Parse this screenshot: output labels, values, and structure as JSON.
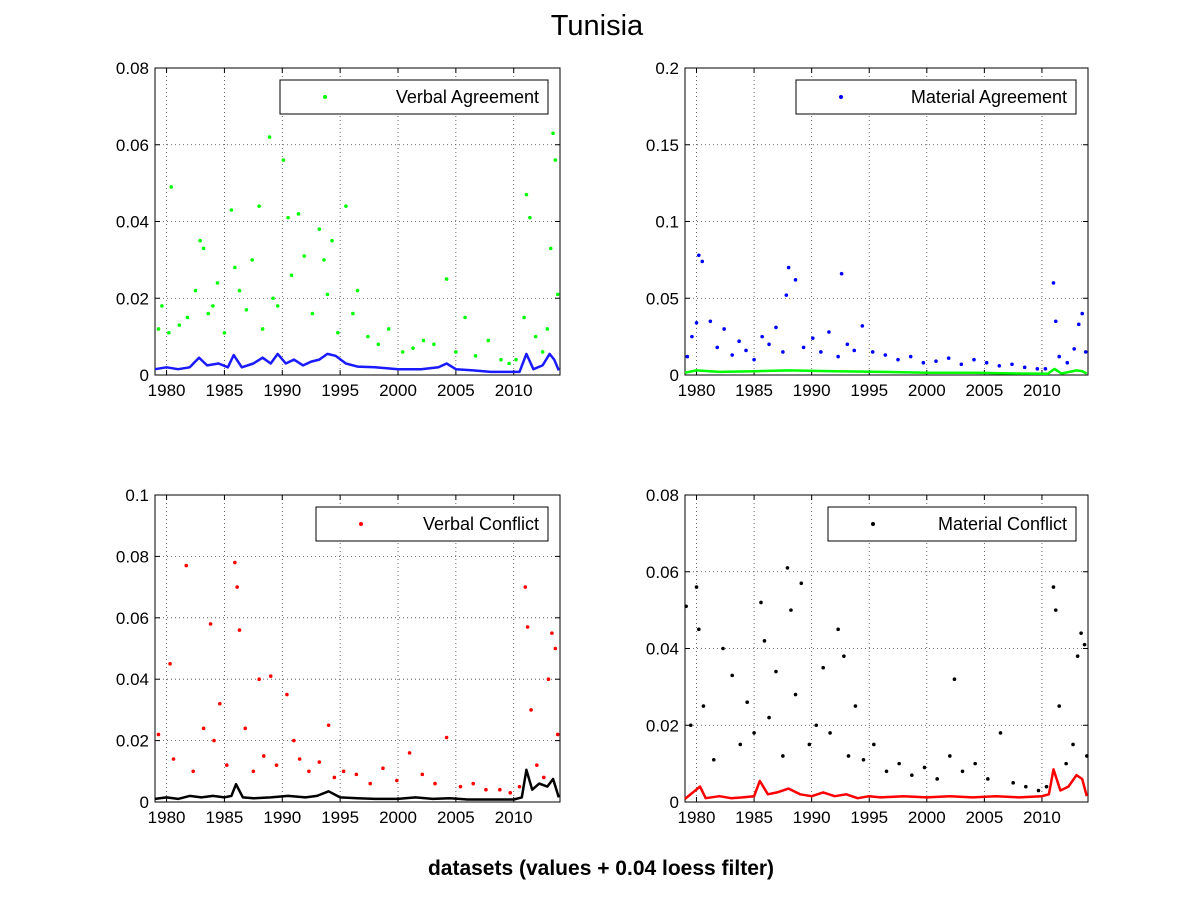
{
  "figure_title": "Tunisia",
  "figure_xlabel": "datasets (values + 0.04 loess filter)",
  "chart_data": [
    {
      "type": "scatter",
      "xlim": [
        1979,
        2014
      ],
      "ylim": [
        0,
        0.08
      ],
      "x_ticks": [
        1980,
        1985,
        1990,
        1995,
        2000,
        2005,
        2010
      ],
      "y_ticks": [
        "0",
        "0.02",
        "0.04",
        "0.06",
        "0.08"
      ],
      "grid": true,
      "legend_position": "top-right",
      "series": [
        {
          "name": "Verbal Agreement",
          "color": "#00ff00",
          "kind": "points",
          "x": [
            1979.3,
            1979.6,
            1980.2,
            1980.4,
            1981.1,
            1981.8,
            1982.5,
            1982.9,
            1983.2,
            1983.6,
            1984.0,
            1984.4,
            1985.0,
            1985.6,
            1985.9,
            1986.3,
            1986.9,
            1987.4,
            1988.0,
            1988.3,
            1988.9,
            1989.2,
            1989.6,
            1990.1,
            1990.5,
            1990.8,
            1991.4,
            1991.9,
            1992.6,
            1993.2,
            1993.6,
            1993.9,
            1994.3,
            1994.8,
            1995.5,
            1996.1,
            1996.5,
            1997.4,
            1998.3,
            1999.2,
            2000.4,
            2001.3,
            2002.2,
            2003.1,
            2004.2,
            2005.0,
            2005.8,
            2006.7,
            2007.8,
            2008.9,
            2009.6,
            2010.2,
            2010.9,
            2011.1,
            2011.4,
            2011.9,
            2012.5,
            2012.9,
            2013.2,
            2013.4,
            2013.6,
            2013.8
          ],
          "y": [
            0.012,
            0.018,
            0.011,
            0.049,
            0.013,
            0.015,
            0.022,
            0.035,
            0.033,
            0.016,
            0.018,
            0.024,
            0.011,
            0.043,
            0.028,
            0.022,
            0.017,
            0.03,
            0.044,
            0.012,
            0.062,
            0.02,
            0.018,
            0.056,
            0.041,
            0.026,
            0.042,
            0.031,
            0.016,
            0.038,
            0.03,
            0.021,
            0.035,
            0.011,
            0.044,
            0.016,
            0.022,
            0.01,
            0.008,
            0.012,
            0.006,
            0.007,
            0.009,
            0.008,
            0.025,
            0.006,
            0.015,
            0.005,
            0.009,
            0.004,
            0.003,
            0.004,
            0.015,
            0.047,
            0.041,
            0.01,
            0.006,
            0.012,
            0.033,
            0.063,
            0.056,
            0.021
          ]
        },
        {
          "name": "",
          "color": "#1a1aff",
          "kind": "line",
          "x": [
            1979,
            1980,
            1981,
            1982,
            1982.8,
            1983.5,
            1984.5,
            1985.3,
            1985.8,
            1986.5,
            1987.5,
            1988.3,
            1989.0,
            1989.6,
            1990.3,
            1991.0,
            1991.8,
            1992.5,
            1993.2,
            1993.9,
            1994.6,
            1995.5,
            1996.5,
            1998,
            2000,
            2002,
            2003.5,
            2004.2,
            2005,
            2006.5,
            2008,
            2009.5,
            2010.5,
            2011.1,
            2011.7,
            2012.5,
            2013.1,
            2013.5,
            2013.9
          ],
          "y": [
            0.0015,
            0.002,
            0.0015,
            0.002,
            0.0045,
            0.0025,
            0.003,
            0.002,
            0.0052,
            0.002,
            0.003,
            0.0045,
            0.003,
            0.0055,
            0.003,
            0.004,
            0.0025,
            0.0035,
            0.004,
            0.0055,
            0.005,
            0.003,
            0.0022,
            0.002,
            0.0015,
            0.0015,
            0.002,
            0.003,
            0.0015,
            0.0012,
            0.0008,
            0.0008,
            0.0008,
            0.0055,
            0.0015,
            0.0025,
            0.0055,
            0.004,
            0.0012
          ]
        }
      ]
    },
    {
      "type": "scatter",
      "xlim": [
        1979,
        2014
      ],
      "ylim": [
        0,
        0.2
      ],
      "x_ticks": [
        1980,
        1985,
        1990,
        1995,
        2000,
        2005,
        2010
      ],
      "y_ticks": [
        "0",
        "0.05",
        "0.1",
        "0.15",
        "0.2"
      ],
      "grid": true,
      "legend_position": "top-right",
      "series": [
        {
          "name": "Material Agreement",
          "color": "#0000ff",
          "kind": "points",
          "x": [
            1979.2,
            1979.6,
            1980.0,
            1980.2,
            1980.5,
            1981.2,
            1981.8,
            1982.4,
            1983.1,
            1983.7,
            1984.3,
            1985.0,
            1985.7,
            1986.3,
            1986.9,
            1987.5,
            1987.8,
            1988.0,
            1988.6,
            1989.3,
            1990.1,
            1990.8,
            1991.5,
            1992.3,
            1992.6,
            1993.1,
            1993.7,
            1994.4,
            1995.3,
            1996.4,
            1997.5,
            1998.6,
            1999.7,
            2000.8,
            2001.9,
            2003.0,
            2004.1,
            2005.2,
            2006.3,
            2007.4,
            2008.5,
            2009.6,
            2010.3,
            2011.0,
            2011.2,
            2011.5,
            2012.2,
            2012.8,
            2013.2,
            2013.5,
            2013.8
          ],
          "y": [
            0.012,
            0.025,
            0.034,
            0.078,
            0.074,
            0.035,
            0.018,
            0.03,
            0.013,
            0.022,
            0.016,
            0.01,
            0.025,
            0.02,
            0.031,
            0.015,
            0.052,
            0.07,
            0.062,
            0.018,
            0.024,
            0.015,
            0.028,
            0.012,
            0.066,
            0.02,
            0.016,
            0.032,
            0.015,
            0.013,
            0.01,
            0.012,
            0.008,
            0.009,
            0.011,
            0.007,
            0.01,
            0.008,
            0.006,
            0.007,
            0.005,
            0.004,
            0.004,
            0.06,
            0.035,
            0.012,
            0.008,
            0.017,
            0.033,
            0.04,
            0.015
          ]
        },
        {
          "name": "",
          "color": "#00ff00",
          "kind": "line",
          "x": [
            1979,
            1980,
            1982,
            1985,
            1988,
            1992,
            1996,
            2000,
            2004,
            2008,
            2010.5,
            2011.1,
            2011.7,
            2013,
            2013.5,
            2013.9
          ],
          "y": [
            0.0015,
            0.003,
            0.002,
            0.0025,
            0.003,
            0.0025,
            0.002,
            0.0015,
            0.0015,
            0.001,
            0.0008,
            0.004,
            0.001,
            0.003,
            0.0025,
            0.001
          ]
        }
      ]
    },
    {
      "type": "scatter",
      "xlim": [
        1979,
        2014
      ],
      "ylim": [
        0,
        0.1
      ],
      "x_ticks": [
        1980,
        1985,
        1990,
        1995,
        2000,
        2005,
        2010
      ],
      "y_ticks": [
        "0",
        "0.02",
        "0.04",
        "0.06",
        "0.08",
        "0.1"
      ],
      "grid": true,
      "legend_position": "top-right",
      "series": [
        {
          "name": "Verbal Conflict",
          "color": "#ff0000",
          "kind": "points",
          "x": [
            1979.3,
            1980.3,
            1980.6,
            1981.7,
            1982.3,
            1983.2,
            1983.8,
            1984.1,
            1984.6,
            1985.2,
            1985.9,
            1986.1,
            1986.3,
            1986.8,
            1987.5,
            1988.0,
            1988.4,
            1989.0,
            1989.5,
            1990.4,
            1991.0,
            1991.5,
            1992.3,
            1993.2,
            1994.0,
            1994.5,
            1995.3,
            1996.4,
            1997.6,
            1998.7,
            1999.9,
            2001.0,
            2002.1,
            2003.2,
            2004.2,
            2005.4,
            2006.5,
            2007.6,
            2008.8,
            2009.7,
            2010.5,
            2011.0,
            2011.2,
            2011.5,
            2012.0,
            2012.6,
            2013.0,
            2013.3,
            2013.6,
            2013.8
          ],
          "y": [
            0.022,
            0.045,
            0.014,
            0.077,
            0.01,
            0.024,
            0.058,
            0.02,
            0.032,
            0.012,
            0.078,
            0.07,
            0.056,
            0.024,
            0.01,
            0.04,
            0.015,
            0.041,
            0.012,
            0.035,
            0.02,
            0.014,
            0.01,
            0.013,
            0.025,
            0.008,
            0.01,
            0.009,
            0.006,
            0.011,
            0.007,
            0.016,
            0.009,
            0.006,
            0.021,
            0.005,
            0.006,
            0.004,
            0.004,
            0.003,
            0.005,
            0.07,
            0.057,
            0.03,
            0.012,
            0.008,
            0.04,
            0.055,
            0.05,
            0.022
          ]
        },
        {
          "name": "",
          "color": "#000000",
          "kind": "line",
          "x": [
            1979,
            1980,
            1981,
            1982,
            1983,
            1984,
            1985,
            1985.6,
            1986,
            1986.6,
            1987.5,
            1989,
            1990.5,
            1992,
            1993,
            1994,
            1995,
            1996.5,
            1998,
            2000,
            2001.5,
            2003,
            2004.5,
            2006,
            2008,
            2010,
            2010.7,
            2011.1,
            2011.6,
            2012.2,
            2012.9,
            2013.4,
            2013.9
          ],
          "y": [
            0.001,
            0.0015,
            0.001,
            0.002,
            0.0015,
            0.002,
            0.0015,
            0.002,
            0.0058,
            0.0015,
            0.0012,
            0.0015,
            0.002,
            0.0015,
            0.002,
            0.0035,
            0.0015,
            0.0012,
            0.001,
            0.001,
            0.0015,
            0.001,
            0.0012,
            0.0008,
            0.0008,
            0.0008,
            0.0015,
            0.0105,
            0.004,
            0.006,
            0.005,
            0.0075,
            0.0015
          ]
        }
      ]
    },
    {
      "type": "scatter",
      "xlim": [
        1979,
        2014
      ],
      "ylim": [
        0,
        0.08
      ],
      "x_ticks": [
        1980,
        1985,
        1990,
        1995,
        2000,
        2005,
        2010
      ],
      "y_ticks": [
        "0",
        "0.02",
        "0.04",
        "0.06",
        "0.08"
      ],
      "grid": true,
      "legend_position": "top-right",
      "series": [
        {
          "name": "Material Conflict",
          "color": "#000000",
          "kind": "points",
          "x": [
            1979.1,
            1979.5,
            1980.0,
            1980.2,
            1980.6,
            1981.5,
            1982.3,
            1983.1,
            1983.8,
            1984.4,
            1985.0,
            1985.6,
            1985.9,
            1986.3,
            1986.9,
            1987.5,
            1987.9,
            1988.2,
            1988.6,
            1989.1,
            1989.8,
            1990.4,
            1991.0,
            1991.6,
            1992.3,
            1992.8,
            1993.2,
            1993.8,
            1994.5,
            1995.4,
            1996.5,
            1997.6,
            1998.7,
            1999.8,
            2000.9,
            2002.0,
            2002.4,
            2003.1,
            2004.2,
            2005.3,
            2006.4,
            2007.5,
            2008.6,
            2009.7,
            2010.4,
            2011.0,
            2011.2,
            2011.5,
            2012.1,
            2012.7,
            2013.1,
            2013.4,
            2013.7,
            2013.9
          ],
          "y": [
            0.051,
            0.02,
            0.056,
            0.045,
            0.025,
            0.011,
            0.04,
            0.033,
            0.015,
            0.026,
            0.018,
            0.052,
            0.042,
            0.022,
            0.034,
            0.012,
            0.061,
            0.05,
            0.028,
            0.057,
            0.015,
            0.02,
            0.035,
            0.018,
            0.045,
            0.038,
            0.012,
            0.025,
            0.011,
            0.015,
            0.008,
            0.01,
            0.007,
            0.009,
            0.006,
            0.012,
            0.032,
            0.008,
            0.01,
            0.006,
            0.018,
            0.005,
            0.004,
            0.003,
            0.004,
            0.056,
            0.05,
            0.025,
            0.01,
            0.015,
            0.038,
            0.044,
            0.041,
            0.012
          ]
        },
        {
          "name": "",
          "color": "#ff0000",
          "kind": "line",
          "x": [
            1979,
            1980.3,
            1980.8,
            1982,
            1983,
            1984,
            1985,
            1985.5,
            1986.2,
            1987,
            1988,
            1989,
            1990,
            1991,
            1992,
            1993,
            1994,
            1995,
            1996,
            1998,
            2000,
            2002,
            2004,
            2006,
            2008,
            2010,
            2010.6,
            2011.0,
            2011.6,
            2012.3,
            2013.0,
            2013.5,
            2013.9
          ],
          "y": [
            0.0008,
            0.004,
            0.001,
            0.0015,
            0.001,
            0.0012,
            0.0015,
            0.0055,
            0.002,
            0.0025,
            0.0035,
            0.002,
            0.0015,
            0.0025,
            0.0015,
            0.002,
            0.001,
            0.0015,
            0.0012,
            0.0015,
            0.0012,
            0.0015,
            0.0012,
            0.0015,
            0.0012,
            0.0015,
            0.002,
            0.0085,
            0.003,
            0.004,
            0.007,
            0.006,
            0.0015
          ]
        }
      ]
    }
  ]
}
